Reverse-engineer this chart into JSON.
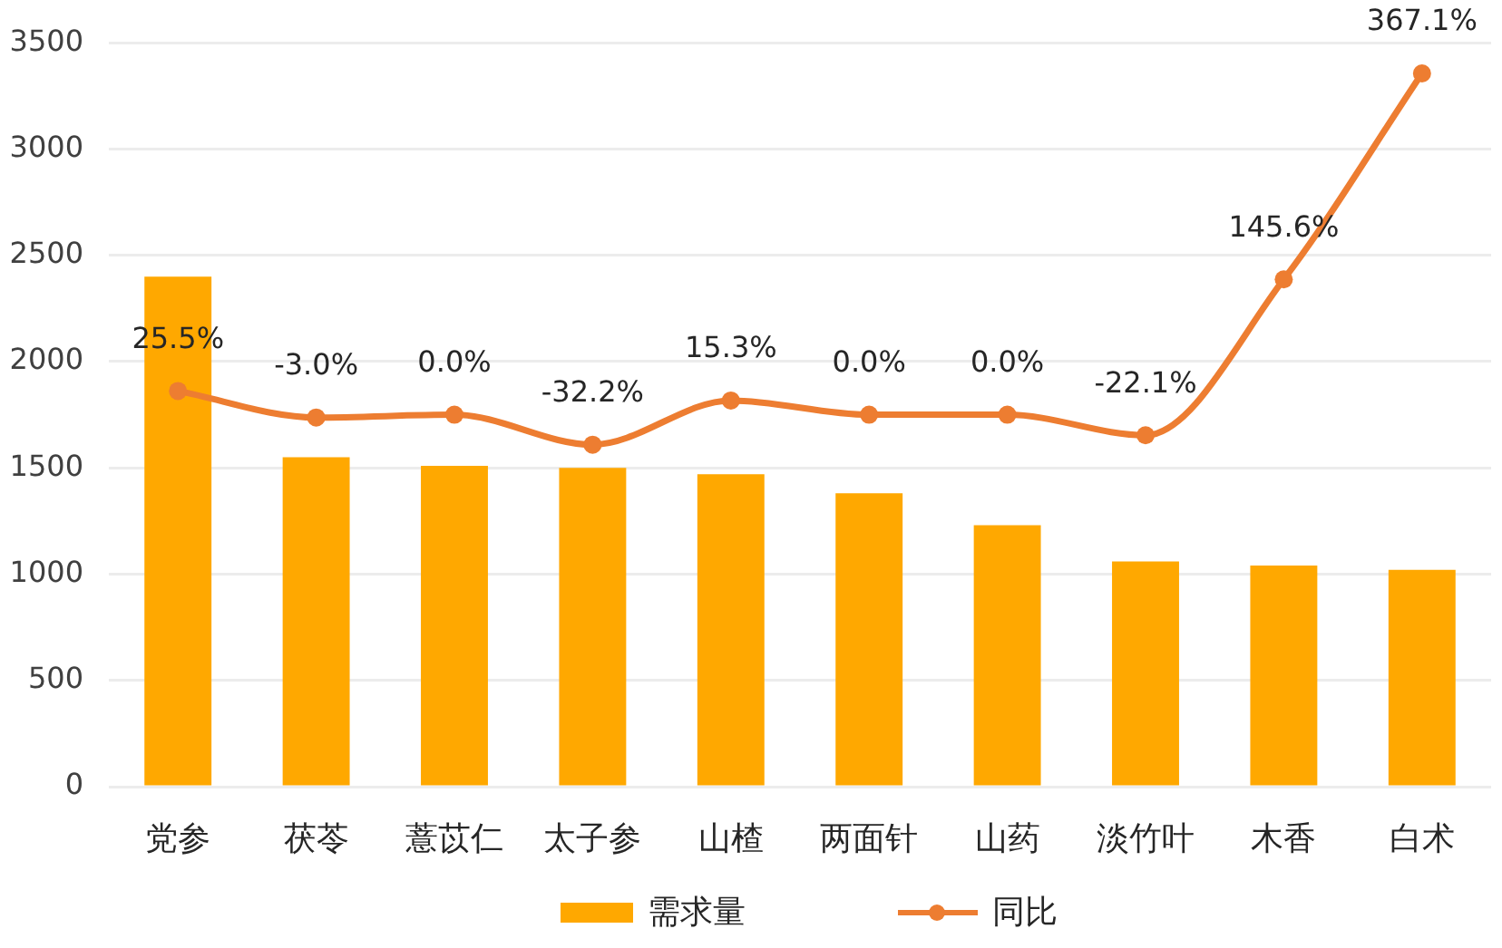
{
  "chart_data": {
    "type": "bar",
    "categories": [
      "党参",
      "茯苓",
      "薏苡仁",
      "太子参",
      "山楂",
      "两面针",
      "山药",
      "淡竹叶",
      "木香",
      "白术"
    ],
    "series": [
      {
        "name": "需求量",
        "color": "#ffa800",
        "values": [
          2400,
          1550,
          1510,
          1500,
          1470,
          1380,
          1230,
          1060,
          1040,
          1020
        ]
      },
      {
        "name": "同比",
        "type": "line",
        "axis": "y2",
        "color": "#ed7d31",
        "values": [
          25.5,
          -3.0,
          0.0,
          -32.2,
          15.3,
          0.0,
          0.0,
          -22.1,
          145.6,
          367.1
        ],
        "value_labels": [
          "25.5%",
          "-3.0%",
          "0.0%",
          "-32.2%",
          "15.3%",
          "0.0%",
          "0.0%",
          "-22.1%",
          "145.6%",
          "367.1%"
        ]
      }
    ],
    "ylim": [
      0,
      3500
    ],
    "yticks": [
      0,
      500,
      1000,
      1500,
      2000,
      2500,
      3000,
      3500
    ],
    "y2lim": [
      -400,
      400
    ],
    "grid": "y",
    "legend": "bottom",
    "marker": "circle",
    "line_style": "solid"
  }
}
